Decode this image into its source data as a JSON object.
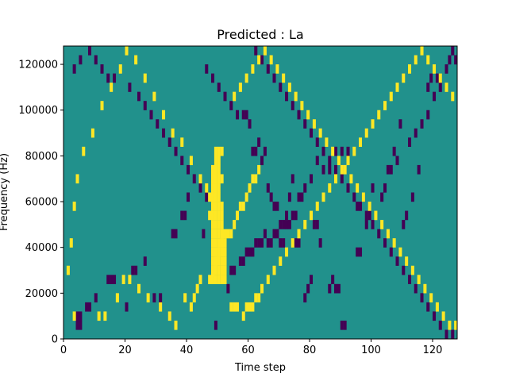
{
  "chart_data": {
    "type": "heatmap",
    "title": "Predicted : La",
    "xlabel": "Time step",
    "ylabel": "Frequency (Hz)",
    "xlim": [
      0,
      128
    ],
    "ylim": [
      0,
      128000
    ],
    "x_ticks": [
      0,
      20,
      40,
      60,
      80,
      100,
      120
    ],
    "y_ticks": [
      0,
      20000,
      40000,
      60000,
      80000,
      100000,
      120000
    ],
    "x_tick_labels": [
      "0",
      "20",
      "40",
      "60",
      "80",
      "100",
      "120"
    ],
    "y_tick_labels": [
      "0",
      "20000",
      "40000",
      "60000",
      "80000",
      "100000",
      "120000"
    ],
    "grid": false,
    "colormap": "viridis",
    "colors": {
      "background": "#21918c",
      "high": "#fde725",
      "low": "#440154"
    },
    "bin_height_hz": 4000,
    "low_cells": [
      [
        4,
        1
      ],
      [
        5,
        1
      ],
      [
        4,
        2
      ],
      [
        5,
        2
      ],
      [
        7,
        3
      ],
      [
        8,
        3
      ],
      [
        10,
        4
      ],
      [
        14,
        6
      ],
      [
        15,
        6
      ],
      [
        16,
        6
      ],
      [
        20,
        3
      ],
      [
        22,
        7
      ],
      [
        23,
        7
      ],
      [
        26,
        8
      ],
      [
        29,
        4
      ],
      [
        31,
        4
      ],
      [
        35,
        11
      ],
      [
        36,
        11
      ],
      [
        38,
        13
      ],
      [
        39,
        13
      ],
      [
        40,
        15
      ],
      [
        45,
        11
      ],
      [
        49,
        1
      ],
      [
        53,
        5
      ],
      [
        54,
        7
      ],
      [
        55,
        7
      ],
      [
        57,
        8
      ],
      [
        58,
        8
      ],
      [
        59,
        9
      ],
      [
        60,
        9
      ],
      [
        61,
        9
      ],
      [
        62,
        10
      ],
      [
        63,
        10
      ],
      [
        64,
        10
      ],
      [
        65,
        11
      ],
      [
        66,
        10
      ],
      [
        67,
        10
      ],
      [
        68,
        11
      ],
      [
        69,
        11
      ],
      [
        70,
        10
      ],
      [
        71,
        10
      ],
      [
        72,
        13
      ],
      [
        73,
        15
      ],
      [
        74,
        17
      ],
      [
        75,
        10
      ],
      [
        76,
        10
      ],
      [
        78,
        4
      ],
      [
        79,
        5
      ],
      [
        80,
        6
      ],
      [
        81,
        12
      ],
      [
        82,
        12
      ],
      [
        83,
        10
      ],
      [
        86,
        5
      ],
      [
        87,
        6
      ],
      [
        88,
        5
      ],
      [
        89,
        5
      ],
      [
        90,
        1
      ],
      [
        91,
        1
      ],
      [
        95,
        9
      ],
      [
        96,
        9
      ],
      [
        98,
        12
      ],
      [
        99,
        13
      ],
      [
        104,
        16
      ],
      [
        105,
        18
      ],
      [
        107,
        20
      ],
      [
        109,
        23
      ],
      [
        110,
        12
      ],
      [
        111,
        13
      ],
      [
        113,
        15
      ],
      [
        115,
        18
      ],
      [
        118,
        27
      ],
      [
        119,
        28
      ],
      [
        58,
        24
      ],
      [
        59,
        24
      ],
      [
        60,
        23
      ],
      [
        61,
        20
      ],
      [
        62,
        20
      ],
      [
        63,
        21
      ],
      [
        64,
        19
      ],
      [
        65,
        20
      ],
      [
        66,
        16
      ],
      [
        67,
        15
      ],
      [
        68,
        14
      ],
      [
        69,
        14
      ],
      [
        70,
        12
      ],
      [
        71,
        12
      ],
      [
        72,
        12
      ],
      [
        73,
        12
      ],
      [
        74,
        13
      ],
      [
        75,
        13
      ],
      [
        76,
        15
      ],
      [
        77,
        15
      ],
      [
        78,
        16
      ],
      [
        80,
        17
      ],
      [
        82,
        19
      ],
      [
        84,
        18
      ],
      [
        86,
        18
      ],
      [
        88,
        20
      ],
      [
        90,
        20
      ],
      [
        92,
        20
      ],
      [
        95,
        14
      ],
      [
        97,
        15
      ],
      [
        100,
        16
      ],
      [
        103,
        15
      ],
      [
        106,
        18
      ],
      [
        108,
        19
      ],
      [
        112,
        21
      ],
      [
        114,
        22
      ],
      [
        116,
        23
      ],
      [
        118,
        24
      ],
      [
        120,
        26
      ],
      [
        121,
        28
      ],
      [
        122,
        27
      ],
      [
        124,
        29
      ],
      [
        125,
        30
      ],
      [
        126,
        31
      ],
      [
        127,
        30
      ],
      [
        14,
        28
      ],
      [
        16,
        28
      ],
      [
        21,
        27
      ],
      [
        24,
        26
      ],
      [
        26,
        25
      ],
      [
        28,
        24
      ],
      [
        30,
        23
      ],
      [
        32,
        22
      ],
      [
        34,
        21
      ],
      [
        36,
        20
      ],
      [
        38,
        19
      ],
      [
        40,
        18
      ],
      [
        42,
        17
      ],
      [
        44,
        16
      ],
      [
        46,
        15
      ],
      [
        3,
        29
      ],
      [
        5,
        30
      ],
      [
        8,
        31
      ],
      [
        10,
        30
      ],
      [
        12,
        29
      ],
      [
        46,
        29
      ],
      [
        48,
        28
      ],
      [
        50,
        27
      ],
      [
        52,
        26
      ],
      [
        54,
        25
      ],
      [
        56,
        24
      ],
      [
        62,
        31
      ],
      [
        64,
        30
      ],
      [
        66,
        29
      ],
      [
        68,
        28
      ],
      [
        70,
        27
      ],
      [
        72,
        26
      ],
      [
        74,
        25
      ],
      [
        76,
        24
      ],
      [
        78,
        23
      ],
      [
        80,
        22
      ],
      [
        82,
        21
      ],
      [
        84,
        20
      ],
      [
        86,
        19
      ],
      [
        88,
        18
      ],
      [
        90,
        17
      ],
      [
        92,
        16
      ],
      [
        94,
        15
      ],
      [
        96,
        14
      ],
      [
        98,
        13
      ],
      [
        100,
        12
      ],
      [
        102,
        11
      ],
      [
        104,
        10
      ],
      [
        106,
        9
      ],
      [
        108,
        8
      ],
      [
        110,
        7
      ],
      [
        112,
        6
      ],
      [
        114,
        5
      ],
      [
        116,
        4
      ],
      [
        118,
        3
      ],
      [
        120,
        2
      ],
      [
        122,
        1
      ],
      [
        124,
        0
      ],
      [
        126,
        0
      ]
    ],
    "high_cells": [
      [
        3,
        2
      ],
      [
        11,
        2
      ],
      [
        13,
        2
      ],
      [
        17,
        4
      ],
      [
        19,
        6
      ],
      [
        21,
        6
      ],
      [
        24,
        5
      ],
      [
        27,
        4
      ],
      [
        31,
        3
      ],
      [
        34,
        2
      ],
      [
        36,
        1
      ],
      [
        39,
        4
      ],
      [
        41,
        3
      ],
      [
        42,
        4
      ],
      [
        43,
        5
      ],
      [
        44,
        6
      ],
      [
        48,
        7
      ],
      [
        49,
        8
      ],
      [
        50,
        9
      ],
      [
        51,
        10
      ],
      [
        52,
        10
      ],
      [
        53,
        11
      ],
      [
        54,
        11
      ],
      [
        55,
        12
      ],
      [
        56,
        13
      ],
      [
        57,
        14
      ],
      [
        58,
        14
      ],
      [
        59,
        15
      ],
      [
        60,
        16
      ],
      [
        61,
        17
      ],
      [
        62,
        17
      ],
      [
        63,
        18
      ],
      [
        47,
        6
      ],
      [
        48,
        6
      ],
      [
        49,
        6
      ],
      [
        50,
        6
      ],
      [
        51,
        6
      ],
      [
        52,
        6
      ],
      [
        48,
        7
      ],
      [
        49,
        7
      ],
      [
        50,
        7
      ],
      [
        51,
        7
      ],
      [
        52,
        7
      ],
      [
        48,
        8
      ],
      [
        49,
        8
      ],
      [
        50,
        8
      ],
      [
        51,
        8
      ],
      [
        52,
        8
      ],
      [
        48,
        9
      ],
      [
        49,
        9
      ],
      [
        50,
        9
      ],
      [
        51,
        9
      ],
      [
        52,
        9
      ],
      [
        48,
        10
      ],
      [
        49,
        10
      ],
      [
        50,
        10
      ],
      [
        51,
        10
      ],
      [
        48,
        11
      ],
      [
        49,
        11
      ],
      [
        50,
        11
      ],
      [
        51,
        11
      ],
      [
        52,
        11
      ],
      [
        48,
        12
      ],
      [
        49,
        12
      ],
      [
        50,
        12
      ],
      [
        51,
        12
      ],
      [
        47,
        13
      ],
      [
        48,
        13
      ],
      [
        49,
        13
      ],
      [
        50,
        13
      ],
      [
        51,
        13
      ],
      [
        48,
        14
      ],
      [
        49,
        14
      ],
      [
        50,
        14
      ],
      [
        51,
        14
      ],
      [
        48,
        15
      ],
      [
        49,
        15
      ],
      [
        50,
        15
      ],
      [
        48,
        16
      ],
      [
        49,
        16
      ],
      [
        50,
        16
      ],
      [
        48,
        17
      ],
      [
        49,
        17
      ],
      [
        50,
        17
      ],
      [
        51,
        17
      ],
      [
        48,
        18
      ],
      [
        49,
        18
      ],
      [
        50,
        18
      ],
      [
        49,
        19
      ],
      [
        50,
        19
      ],
      [
        49,
        20
      ],
      [
        50,
        20
      ],
      [
        51,
        20
      ],
      [
        54,
        3
      ],
      [
        55,
        3
      ],
      [
        56,
        3
      ],
      [
        58,
        2
      ],
      [
        59,
        3
      ],
      [
        60,
        3
      ],
      [
        61,
        3
      ],
      [
        62,
        4
      ],
      [
        63,
        4
      ],
      [
        64,
        5
      ],
      [
        66,
        6
      ],
      [
        68,
        7
      ],
      [
        70,
        8
      ],
      [
        72,
        9
      ],
      [
        74,
        10
      ],
      [
        76,
        11
      ],
      [
        78,
        12
      ],
      [
        80,
        13
      ],
      [
        82,
        14
      ],
      [
        84,
        15
      ],
      [
        86,
        16
      ],
      [
        88,
        17
      ],
      [
        90,
        18
      ],
      [
        92,
        19
      ],
      [
        94,
        20
      ],
      [
        96,
        21
      ],
      [
        98,
        22
      ],
      [
        100,
        23
      ],
      [
        102,
        24
      ],
      [
        104,
        25
      ],
      [
        106,
        26
      ],
      [
        108,
        27
      ],
      [
        110,
        28
      ],
      [
        112,
        29
      ],
      [
        114,
        30
      ],
      [
        116,
        31
      ],
      [
        118,
        30
      ],
      [
        120,
        29
      ],
      [
        122,
        28
      ],
      [
        124,
        27
      ],
      [
        126,
        26
      ],
      [
        1,
        7
      ],
      [
        2,
        10
      ],
      [
        3,
        14
      ],
      [
        4,
        17
      ],
      [
        6,
        20
      ],
      [
        9,
        22
      ],
      [
        12,
        25
      ],
      [
        15,
        27
      ],
      [
        18,
        29
      ],
      [
        20,
        31
      ],
      [
        23,
        30
      ],
      [
        26,
        28
      ],
      [
        29,
        26
      ],
      [
        32,
        24
      ],
      [
        35,
        22
      ],
      [
        38,
        21
      ],
      [
        41,
        19
      ],
      [
        44,
        17
      ],
      [
        46,
        16
      ],
      [
        47,
        15
      ],
      [
        55,
        26
      ],
      [
        57,
        27
      ],
      [
        59,
        28
      ],
      [
        61,
        29
      ],
      [
        63,
        30
      ],
      [
        65,
        31
      ],
      [
        67,
        30
      ],
      [
        69,
        29
      ],
      [
        71,
        28
      ],
      [
        73,
        27
      ],
      [
        75,
        26
      ],
      [
        77,
        25
      ],
      [
        79,
        24
      ],
      [
        81,
        23
      ],
      [
        83,
        22
      ],
      [
        85,
        21
      ],
      [
        87,
        20
      ],
      [
        89,
        19
      ],
      [
        91,
        18
      ],
      [
        93,
        17
      ],
      [
        95,
        16
      ],
      [
        97,
        15
      ],
      [
        99,
        14
      ],
      [
        101,
        13
      ],
      [
        103,
        12
      ],
      [
        105,
        11
      ],
      [
        107,
        10
      ],
      [
        109,
        9
      ],
      [
        111,
        8
      ],
      [
        113,
        7
      ],
      [
        115,
        6
      ],
      [
        117,
        5
      ],
      [
        119,
        4
      ],
      [
        121,
        3
      ],
      [
        123,
        2
      ],
      [
        125,
        1
      ],
      [
        127,
        1
      ]
    ]
  }
}
